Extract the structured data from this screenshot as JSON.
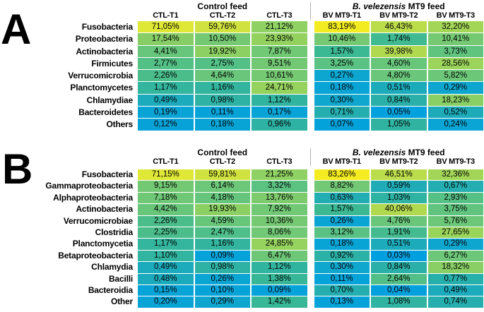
{
  "chart_data": [
    {
      "type": "heatmap",
      "panel_letter": "A",
      "group_headers": {
        "control": "Control feed",
        "treatment_italic": "B. velezensis",
        "treatment_rest": " MT9 feed"
      },
      "columns": [
        "CTL-T1",
        "CTL-T2",
        "CTL-T3",
        "BV MT9-T1",
        "BV MT9-T2",
        "BV MT9-T3"
      ],
      "value_format": "percent, comma decimal, 2 dp",
      "rows": [
        {
          "taxon": "Fusobacteria",
          "values": [
            71.05,
            59.76,
            21.12,
            83.19,
            46.43,
            32.2
          ]
        },
        {
          "taxon": "Proteobacteria",
          "values": [
            17.54,
            10.5,
            23.93,
            10.46,
            1.74,
            10.41
          ]
        },
        {
          "taxon": "Actinobacteria",
          "values": [
            4.41,
            19.92,
            7.87,
            1.57,
            39.98,
            3.73
          ]
        },
        {
          "taxon": "Firmicutes",
          "values": [
            2.77,
            2.75,
            9.51,
            3.25,
            4.6,
            28.56
          ]
        },
        {
          "taxon": "Verrucomicrobia",
          "values": [
            2.26,
            4.64,
            10.61,
            0.27,
            4.8,
            5.82
          ]
        },
        {
          "taxon": "Planctomycetes",
          "values": [
            1.17,
            1.16,
            24.71,
            0.18,
            0.51,
            0.29
          ]
        },
        {
          "taxon": "Chlamydiae",
          "values": [
            0.49,
            0.98,
            1.12,
            0.3,
            0.84,
            18.23
          ]
        },
        {
          "taxon": "Bacteroidetes",
          "values": [
            0.19,
            0.11,
            0.17,
            0.71,
            0.05,
            0.52
          ]
        },
        {
          "taxon": "Others",
          "values": [
            0.12,
            0.18,
            0.96,
            0.07,
            1.05,
            0.24
          ]
        }
      ]
    },
    {
      "type": "heatmap",
      "panel_letter": "B",
      "group_headers": {
        "control": "Control feed",
        "treatment_italic": "B. velezensis",
        "treatment_rest": " MT9 feed"
      },
      "columns": [
        "CTL-T1",
        "CTL-T2",
        "CTL-T3",
        "BV MT9-T1",
        "BV MT9-T2",
        "BV MT9-T3"
      ],
      "value_format": "percent, comma decimal, 2 dp",
      "rows": [
        {
          "taxon": "Fusobacteria",
          "values": [
            71.15,
            59.81,
            21.25,
            83.26,
            46.51,
            32.36
          ]
        },
        {
          "taxon": "Gammaproteobacteria",
          "values": [
            9.15,
            6.14,
            3.32,
            8.82,
            0.59,
            0.67
          ]
        },
        {
          "taxon": "Alphaproteobacteria",
          "values": [
            7.18,
            4.18,
            13.76,
            0.63,
            1.03,
            2.93
          ]
        },
        {
          "taxon": "Actinobacteria",
          "values": [
            4.42,
            19.93,
            7.92,
            1.57,
            40.06,
            3.75
          ]
        },
        {
          "taxon": "Verrucomicrobiae",
          "values": [
            2.26,
            4.59,
            10.36,
            0.26,
            4.76,
            5.76
          ]
        },
        {
          "taxon": "Clostridia",
          "values": [
            2.25,
            2.47,
            8.06,
            3.12,
            1.91,
            27.65
          ]
        },
        {
          "taxon": "Planctomycetia",
          "values": [
            1.17,
            1.16,
            24.85,
            0.18,
            0.51,
            0.29
          ]
        },
        {
          "taxon": "Betaproteobacteria",
          "values": [
            1.1,
            0.09,
            6.47,
            0.92,
            0.03,
            6.27
          ]
        },
        {
          "taxon": "Chlamydia",
          "values": [
            0.49,
            0.98,
            1.12,
            0.3,
            0.84,
            18.32
          ]
        },
        {
          "taxon": "Bacilli",
          "values": [
            0.48,
            0.26,
            1.38,
            0.11,
            2.64,
            0.77
          ]
        },
        {
          "taxon": "Bacteroidia",
          "values": [
            0.15,
            0.1,
            0.09,
            0.7,
            0.04,
            0.49
          ]
        },
        {
          "taxon": "Other",
          "values": [
            0.2,
            0.29,
            1.42,
            0.13,
            1.08,
            0.74
          ]
        }
      ]
    }
  ],
  "color_scale": {
    "space": "piecewise-linear over log10(percent)",
    "stops": [
      {
        "log10": -1.55,
        "color": "#00a0e0"
      },
      {
        "log10": -0.6,
        "color": "#0aa5d4"
      },
      {
        "log10": -0.1,
        "color": "#28afab"
      },
      {
        "log10": 0.2,
        "color": "#3bb993"
      },
      {
        "log10": 0.65,
        "color": "#68c67b"
      },
      {
        "log10": 1.05,
        "color": "#76c972"
      },
      {
        "log10": 1.45,
        "color": "#9ad45b"
      },
      {
        "log10": 1.7,
        "color": "#c0dd49"
      },
      {
        "log10": 1.8,
        "color": "#d5e43c"
      },
      {
        "log10": 1.88,
        "color": "#e4e934"
      },
      {
        "log10": 1.93,
        "color": "#f8ed1d"
      }
    ],
    "separator_color": "#b0b0b0",
    "cell_text_color": "#000000",
    "background": "#ffffff"
  }
}
